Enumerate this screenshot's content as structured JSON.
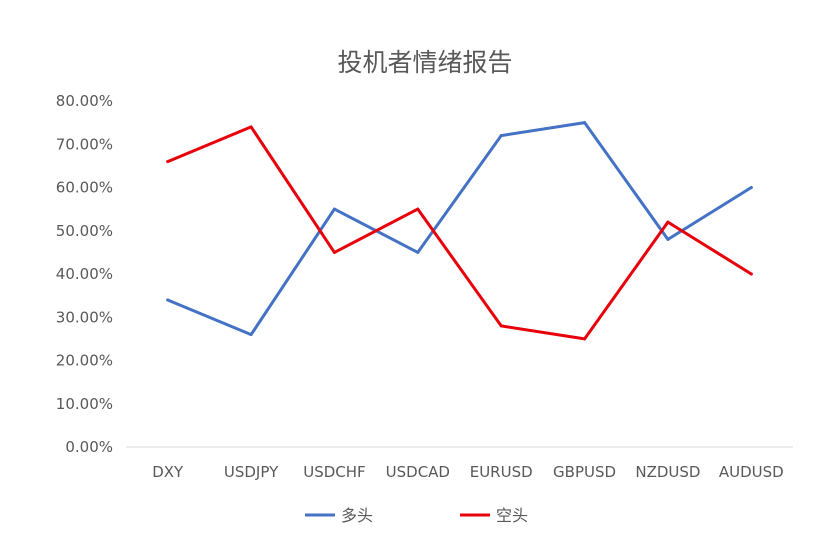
{
  "chart_data": {
    "type": "line",
    "title": "投机者情绪报告",
    "xlabel": "",
    "ylabel": "",
    "categories": [
      "DXY",
      "USDJPY",
      "USDCHF",
      "USDCAD",
      "EURUSD",
      "GBPUSD",
      "NZDUSD",
      "AUDUSD"
    ],
    "ylim": [
      0,
      80
    ],
    "yticks": [
      "0.00%",
      "10.00%",
      "20.00%",
      "30.00%",
      "40.00%",
      "50.00%",
      "60.00%",
      "70.00%",
      "80.00%"
    ],
    "grid": "none",
    "legend_position": "bottom",
    "series": [
      {
        "name": "多头",
        "color": "#4472C4",
        "values": [
          34,
          26,
          55,
          45,
          72,
          75,
          48,
          60
        ]
      },
      {
        "name": "空头",
        "color": "#E8000B",
        "values": [
          66,
          74,
          45,
          55,
          28,
          25,
          52,
          40
        ]
      }
    ],
    "axis_color": "#D9D9D9"
  }
}
